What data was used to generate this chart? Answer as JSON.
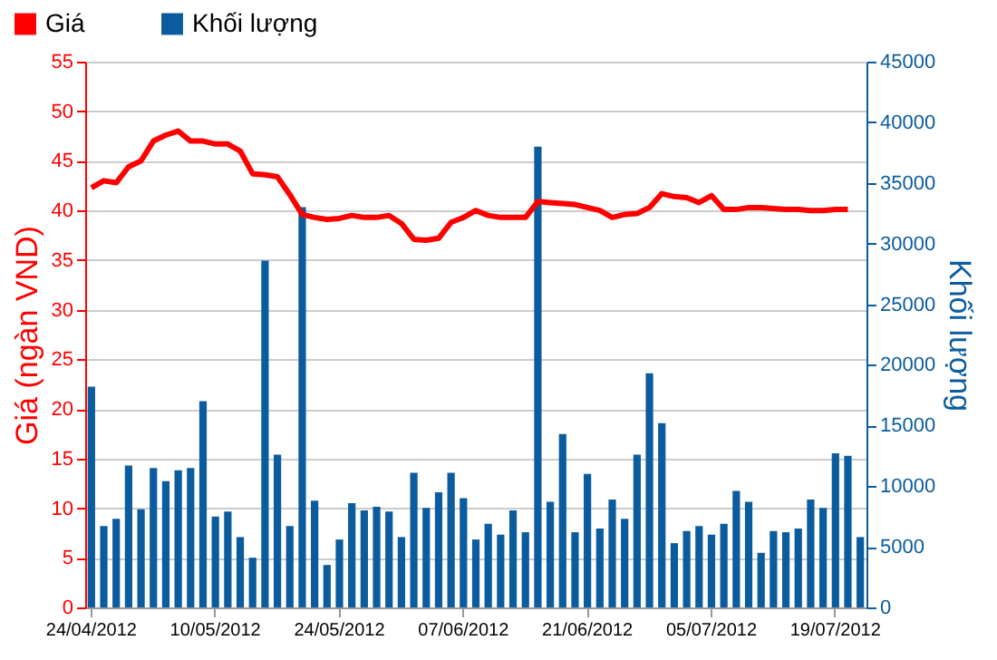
{
  "chart_data": {
    "type": "bar",
    "xlabel": null,
    "ylabel": "Giá (ngàn VND)",
    "y2label": "Khối lượng",
    "categories": [
      "24/04/2012",
      null,
      null,
      null,
      null,
      null,
      null,
      null,
      null,
      null,
      "10/05/2012",
      null,
      null,
      null,
      null,
      null,
      null,
      null,
      null,
      null,
      "24/05/2012",
      null,
      null,
      null,
      null,
      null,
      null,
      null,
      null,
      null,
      "07/06/2012",
      null,
      null,
      null,
      null,
      null,
      null,
      null,
      null,
      null,
      "21/06/2012",
      null,
      null,
      null,
      null,
      null,
      null,
      null,
      null,
      null,
      "05/07/2012",
      null,
      null,
      null,
      null,
      null,
      null,
      null,
      null,
      null,
      "19/07/2012",
      null,
      null
    ],
    "series": [
      {
        "name": "Giá",
        "type": "line",
        "color": "#ff0000",
        "values": [
          42.3,
          43.0,
          42.8,
          44.4,
          45.0,
          47.0,
          47.6,
          48.0,
          47.0,
          47.0,
          46.7,
          46.7,
          46.0,
          43.7,
          43.6,
          43.4,
          41.6,
          39.6,
          39.3,
          39.1,
          39.2,
          39.5,
          39.3,
          39.3,
          39.5,
          38.7,
          37.1,
          37.0,
          37.2,
          38.8,
          39.3,
          40.0,
          39.5,
          39.3,
          39.3,
          39.3,
          40.9,
          40.8,
          40.7,
          40.6,
          40.3,
          40.0,
          39.3,
          39.6,
          39.7,
          40.3,
          41.7,
          41.4,
          41.3,
          40.8,
          41.5,
          40.1,
          40.1,
          40.3,
          40.3,
          40.2,
          40.1,
          40.1,
          40.0,
          40.0,
          40.1,
          40.1,
          null
        ]
      },
      {
        "name": "Khối lượng",
        "axis": "y2",
        "color": "#0b5c9e",
        "values": [
          18200,
          6700,
          7300,
          11700,
          8100,
          11500,
          10400,
          11300,
          11500,
          17000,
          7500,
          7900,
          5800,
          4100,
          28600,
          12600,
          6700,
          33000,
          8800,
          3500,
          5600,
          8600,
          8000,
          8300,
          7900,
          5800,
          11100,
          8200,
          9500,
          11100,
          9000,
          5600,
          6900,
          6000,
          8000,
          6200,
          38000,
          8700,
          14300,
          6200,
          11000,
          6500,
          8900,
          7300,
          12600,
          19300,
          15200,
          5300,
          6300,
          6700,
          6000,
          6900,
          9600,
          8700,
          4500,
          6300,
          6200,
          6500,
          8900,
          8200,
          12700,
          12500,
          5800
        ]
      }
    ],
    "ylim": [
      0,
      55
    ],
    "yticks": [
      0,
      5,
      10,
      15,
      20,
      25,
      30,
      35,
      40,
      45,
      50,
      55
    ],
    "y2lim": [
      0,
      45000
    ],
    "y2ticks": [
      0,
      5000,
      10000,
      15000,
      20000,
      25000,
      30000,
      35000,
      40000,
      45000
    ],
    "grid": "y",
    "legend": "top left"
  }
}
